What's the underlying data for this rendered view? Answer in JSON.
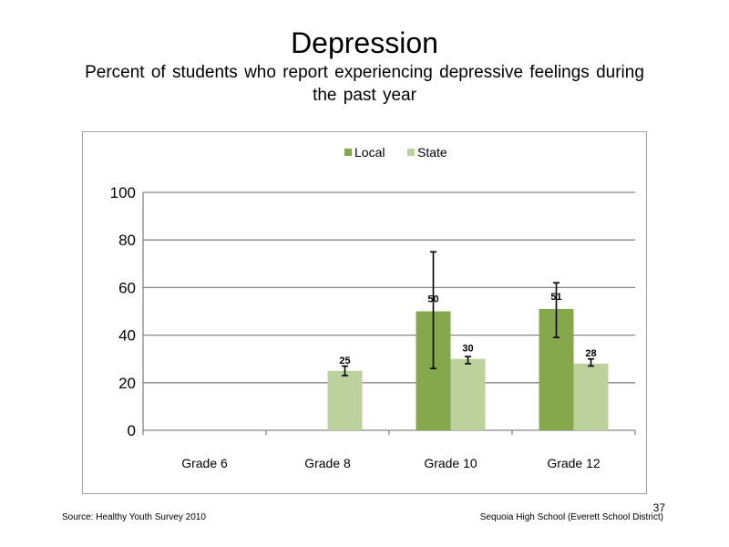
{
  "slide": {
    "title": "Depression",
    "subtitle": "Percent of students who report experiencing depressive feelings during the past year",
    "source": "Source: Healthy Youth Survey 2010",
    "school": "Sequoia High School (Everett School District)",
    "page_number": "37"
  },
  "chart_data": {
    "type": "bar",
    "title": "",
    "xlabel": "",
    "ylabel": "",
    "categories": [
      "Grade 6",
      "Grade 8",
      "Grade 10",
      "Grade 12"
    ],
    "ylim": [
      0,
      100
    ],
    "yticks": [
      0,
      20,
      40,
      60,
      80,
      100
    ],
    "grid": true,
    "legend": "top-center",
    "series": [
      {
        "name": "Local",
        "color": "#86a84d",
        "values": [
          null,
          null,
          50,
          51
        ],
        "labels": [
          "",
          "",
          "50",
          "51"
        ],
        "error_low": [
          null,
          null,
          26,
          39
        ],
        "error_high": [
          null,
          null,
          75,
          62
        ]
      },
      {
        "name": "State",
        "color": "#bcd19b",
        "values": [
          null,
          25,
          30,
          28
        ],
        "labels": [
          "",
          "25",
          "30",
          "28"
        ],
        "error_low": [
          null,
          23,
          28,
          27
        ],
        "error_high": [
          null,
          27,
          31,
          30
        ]
      }
    ]
  }
}
